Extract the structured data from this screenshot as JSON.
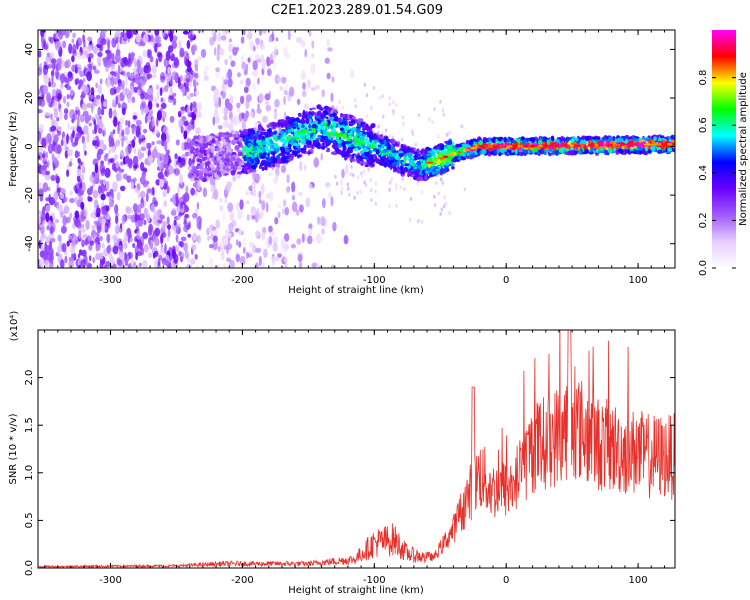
{
  "figure_title": "C2E1.2023.289.01.54.G09",
  "chart_data": [
    {
      "type": "heatmap",
      "xlabel": "Height of straight line (km)",
      "ylabel": "Frequency (Hz)",
      "xlim": [
        -355,
        128
      ],
      "ylim": [
        -50,
        48
      ],
      "xticks": [
        -300,
        -200,
        -100,
        0,
        100
      ],
      "yticks": [
        -40,
        -20,
        0,
        20,
        40
      ],
      "colorbar": {
        "label": "Normalized spectral amplitude",
        "range": [
          0,
          1
        ],
        "ticks": [
          "0.0",
          "0.2",
          "0.4",
          "0.6",
          "0.8"
        ],
        "tick_values": [
          0,
          0.2,
          0.4,
          0.6,
          0.8
        ],
        "colormap": [
          "#ffffff",
          "#e6ccff",
          "#a05aff",
          "#6a00ff",
          "#0000ff",
          "#00ffff",
          "#00ff00",
          "#ffff00",
          "#ff0000",
          "#ff00ff"
        ]
      },
      "ridge": [
        {
          "x": -230,
          "f": -5
        },
        {
          "x": -180,
          "f": 0
        },
        {
          "x": -140,
          "f": 8
        },
        {
          "x": -120,
          "f": 4
        },
        {
          "x": -100,
          "f": 0
        },
        {
          "x": -80,
          "f": -5
        },
        {
          "x": -65,
          "f": -8
        },
        {
          "x": -55,
          "f": -6
        },
        {
          "x": -40,
          "f": -3
        },
        {
          "x": -20,
          "f": 0
        },
        {
          "x": 0,
          "f": 0
        },
        {
          "x": 128,
          "f": 1
        }
      ]
    },
    {
      "type": "line",
      "xlabel": "Height of straight line (km)",
      "ylabel": "SNR (10 * v/v)",
      "y_multiplier": "(x10⁴)",
      "xlim": [
        -355,
        128
      ],
      "ylim": [
        0,
        2.5
      ],
      "xticks": [
        -300,
        -200,
        -100,
        0,
        100
      ],
      "yticks": [
        "0.0",
        "0.5",
        "1.0",
        "1.5",
        "2.0"
      ],
      "ytick_values": [
        0,
        0.5,
        1.0,
        1.5,
        2.0
      ],
      "series_color": "#e8302a",
      "envelope": [
        {
          "x": -355,
          "y": 0.02
        },
        {
          "x": -250,
          "y": 0.03
        },
        {
          "x": -215,
          "y": 0.06
        },
        {
          "x": -150,
          "y": 0.06
        },
        {
          "x": -115,
          "y": 0.12
        },
        {
          "x": -100,
          "y": 0.35
        },
        {
          "x": -85,
          "y": 0.4
        },
        {
          "x": -75,
          "y": 0.2
        },
        {
          "x": -55,
          "y": 0.12
        },
        {
          "x": -40,
          "y": 0.45
        },
        {
          "x": -30,
          "y": 0.8
        },
        {
          "x": -20,
          "y": 1.1
        },
        {
          "x": -10,
          "y": 0.9
        },
        {
          "x": 5,
          "y": 0.95
        },
        {
          "x": 20,
          "y": 1.4
        },
        {
          "x": 35,
          "y": 1.5
        },
        {
          "x": 50,
          "y": 1.7
        },
        {
          "x": 70,
          "y": 1.45
        },
        {
          "x": 95,
          "y": 1.35
        },
        {
          "x": 110,
          "y": 1.3
        },
        {
          "x": 128,
          "y": 1.3
        }
      ]
    }
  ]
}
